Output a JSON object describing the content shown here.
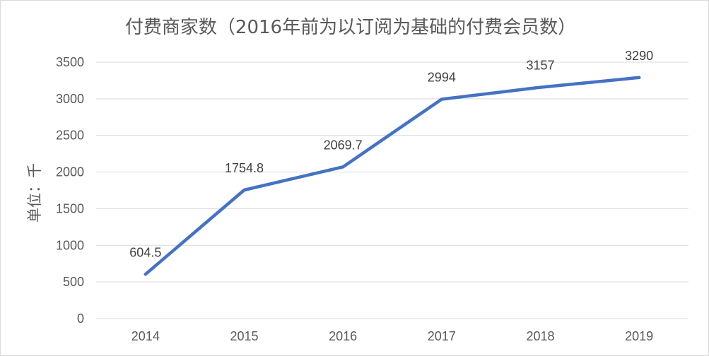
{
  "chart_data": {
    "type": "line",
    "title": "付费商家数（2016年前为以订阅为基础的付费会员数）",
    "xlabel": "",
    "ylabel": "单位：千",
    "categories": [
      "2014",
      "2015",
      "2016",
      "2017",
      "2018",
      "2019"
    ],
    "series": [
      {
        "values": [
          604.5,
          1754.8,
          2069.7,
          2994,
          3157,
          3290
        ],
        "labels": [
          "604.5",
          "1754.8",
          "2069.7",
          "2994",
          "3157",
          "3290"
        ],
        "color": "#4472c4"
      }
    ],
    "ylim": [
      0,
      3500
    ],
    "yticks": [
      "0",
      "500",
      "1000",
      "1500",
      "2000",
      "2500",
      "3000",
      "3500"
    ],
    "grid": true,
    "legend": "none"
  }
}
